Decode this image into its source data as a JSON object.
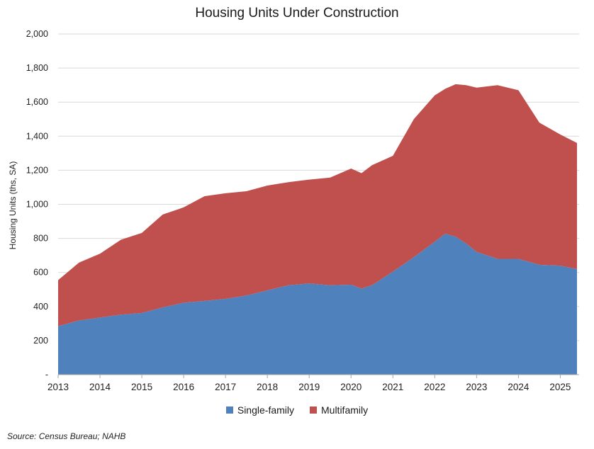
{
  "chart_data": {
    "type": "area",
    "stacked": true,
    "title": "Housing Units Under Construction",
    "xlabel": "",
    "ylabel": "Housing Units (ths, SA)",
    "ylim": [
      0,
      2000
    ],
    "y_ticks": [
      0,
      200,
      400,
      600,
      800,
      1000,
      1200,
      1400,
      1600,
      1800,
      2000
    ],
    "y_tick_labels": [
      "-",
      "200",
      "400",
      "600",
      "800",
      "1,000",
      "1,200",
      "1,400",
      "1,600",
      "1,800",
      "2,000"
    ],
    "x_tick_labels": [
      "2013",
      "2014",
      "2015",
      "2016",
      "2017",
      "2018",
      "2019",
      "2020",
      "2021",
      "2022",
      "2023",
      "2024",
      "2025"
    ],
    "xlim": [
      2013.0,
      2025.45
    ],
    "grid": "horizontal",
    "legend_position": "bottom",
    "x": [
      2013.0,
      2013.5,
      2014.0,
      2014.5,
      2015.0,
      2015.5,
      2016.0,
      2016.5,
      2017.0,
      2017.5,
      2018.0,
      2018.5,
      2019.0,
      2019.5,
      2020.0,
      2020.25,
      2020.5,
      2021.0,
      2021.5,
      2022.0,
      2022.25,
      2022.5,
      2022.75,
      2023.0,
      2023.5,
      2024.0,
      2024.5,
      2025.0,
      2025.4
    ],
    "series": [
      {
        "name": "Single-family",
        "color": "#4f81bd",
        "values": [
          285,
          318,
          335,
          352,
          362,
          395,
          422,
          433,
          445,
          465,
          495,
          525,
          535,
          525,
          528,
          505,
          525,
          605,
          690,
          780,
          828,
          810,
          770,
          720,
          680,
          680,
          645,
          640,
          620
        ]
      },
      {
        "name": "Multifamily",
        "color": "#c0504d",
        "values": [
          270,
          340,
          375,
          440,
          470,
          545,
          560,
          615,
          620,
          612,
          615,
          605,
          610,
          632,
          682,
          678,
          705,
          680,
          810,
          860,
          850,
          895,
          930,
          965,
          1020,
          990,
          835,
          770,
          740
        ]
      }
    ]
  },
  "source_note": "Source: Census Bureau; NAHB"
}
